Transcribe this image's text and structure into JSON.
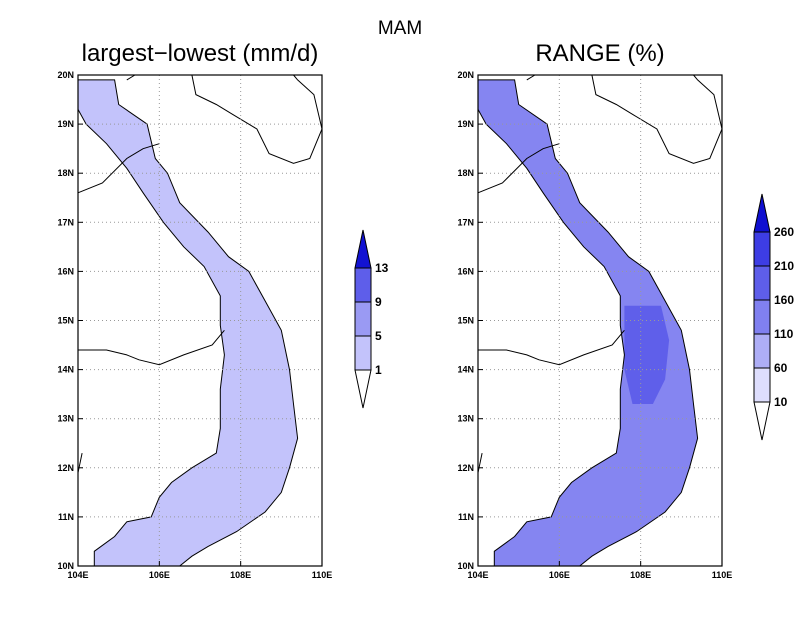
{
  "figure": {
    "season": "MAM",
    "panels": [
      {
        "title": "largest−lowest (mm/d)",
        "colorbar": {
          "levels": [
            "1",
            "5",
            "9",
            "13"
          ],
          "colors": [
            "#ffffff",
            "#c3c3fb",
            "#9a9af3",
            "#5e5eea",
            "#2a2ae2"
          ],
          "max_arrow_color": "#1212d2"
        },
        "fill_color": "#c3c3fb"
      },
      {
        "title": "RANGE (%)",
        "colorbar": {
          "levels": [
            "10",
            "60",
            "110",
            "160",
            "210",
            "260"
          ],
          "colors": [
            "#ffffff",
            "#dedefd",
            "#aeaef6",
            "#8080f0",
            "#5e5eea",
            "#3d3de4",
            "#2222dc"
          ],
          "max_arrow_color": "#0f0fd0"
        },
        "fill_color": "#8585f1",
        "inland_fill_color": "#5f5fea"
      }
    ],
    "axes": {
      "x_ticks": [
        "104E",
        "106E",
        "108E",
        "110E"
      ],
      "y_ticks": [
        "10N",
        "11N",
        "12N",
        "13N",
        "14N",
        "15N",
        "16N",
        "17N",
        "18N",
        "19N",
        "20N"
      ],
      "x_range": [
        104,
        110
      ],
      "y_range": [
        10,
        20
      ]
    }
  }
}
